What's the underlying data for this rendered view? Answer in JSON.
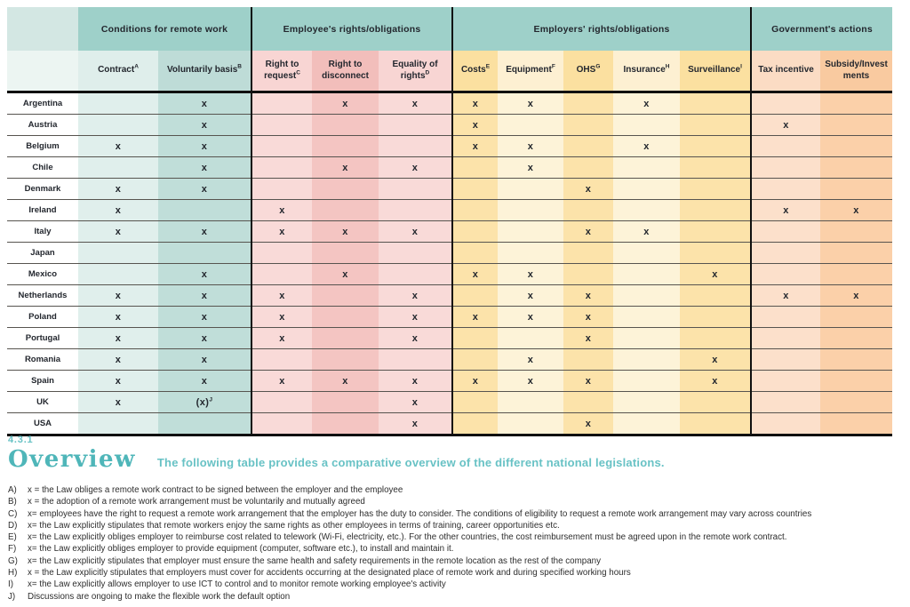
{
  "section": {
    "number": "4.3.1",
    "title": "Overview",
    "subtitle": "The following table provides a comparative overview of the different national legislations."
  },
  "table": {
    "mark": "x",
    "groups": [
      {
        "label": "Conditions for remote work",
        "columns": [
          {
            "label": "Contract",
            "sup": "A"
          },
          {
            "label": "Voluntarily basis",
            "sup": "B"
          }
        ]
      },
      {
        "label": "Employee's rights/obligations",
        "columns": [
          {
            "label": "Right to request",
            "sup": "C"
          },
          {
            "label": "Right to disconnect",
            "sup": ""
          },
          {
            "label": "Equality of rights",
            "sup": "D"
          }
        ]
      },
      {
        "label": "Employers' rights/obligations",
        "columns": [
          {
            "label": "Costs",
            "sup": "E"
          },
          {
            "label": "Equipment",
            "sup": "F"
          },
          {
            "label": "OHS",
            "sup": "G"
          },
          {
            "label": "Insurance",
            "sup": "H"
          },
          {
            "label": "Surveillance",
            "sup": "I"
          }
        ]
      },
      {
        "label": "Government's actions",
        "columns": [
          {
            "label": "Tax incentive",
            "sup": ""
          },
          {
            "label": "Subsidy/Investments",
            "sup": ""
          }
        ]
      }
    ],
    "column_keys": [
      "contract",
      "voluntarily_basis",
      "right_to_request",
      "right_to_disconnect",
      "equality_of_rights",
      "costs",
      "equipment",
      "ohs",
      "insurance",
      "surveillance",
      "tax_incentive",
      "subsidy_investments"
    ],
    "rows": [
      {
        "country": "Argentina",
        "cells": [
          "",
          "x",
          "",
          "x",
          "x",
          "x",
          "x",
          "",
          "x",
          "",
          "",
          ""
        ]
      },
      {
        "country": "Austria",
        "cells": [
          "",
          "x",
          "",
          "",
          "",
          "x",
          "",
          "",
          "",
          "",
          "x",
          ""
        ]
      },
      {
        "country": "Belgium",
        "cells": [
          "x",
          "x",
          "",
          "",
          "",
          "x",
          "x",
          "",
          "x",
          "",
          "",
          ""
        ]
      },
      {
        "country": "Chile",
        "cells": [
          "",
          "x",
          "",
          "x",
          "x",
          "",
          "x",
          "",
          "",
          "",
          "",
          ""
        ]
      },
      {
        "country": "Denmark",
        "cells": [
          "x",
          "x",
          "",
          "",
          "",
          "",
          "",
          "x",
          "",
          "",
          "",
          ""
        ]
      },
      {
        "country": "Ireland",
        "cells": [
          "x",
          "",
          "x",
          "",
          "",
          "",
          "",
          "",
          "",
          "",
          "x",
          "x"
        ]
      },
      {
        "country": "Italy",
        "cells": [
          "x",
          "x",
          "x",
          "x",
          "x",
          "",
          "",
          "x",
          "x",
          "",
          "",
          ""
        ]
      },
      {
        "country": "Japan",
        "cells": [
          "",
          "",
          "",
          "",
          "",
          "",
          "",
          "",
          "",
          "",
          "",
          ""
        ]
      },
      {
        "country": "Mexico",
        "cells": [
          "",
          "x",
          "",
          "x",
          "",
          "x",
          "x",
          "",
          "",
          "x",
          "",
          ""
        ]
      },
      {
        "country": "Netherlands",
        "cells": [
          "x",
          "x",
          "x",
          "",
          "x",
          "",
          "x",
          "x",
          "",
          "",
          "x",
          "x"
        ]
      },
      {
        "country": "Poland",
        "cells": [
          "x",
          "x",
          "x",
          "",
          "x",
          "x",
          "x",
          "x",
          "",
          "",
          "",
          ""
        ]
      },
      {
        "country": "Portugal",
        "cells": [
          "x",
          "x",
          "x",
          "",
          "x",
          "",
          "",
          "x",
          "",
          "",
          "",
          ""
        ]
      },
      {
        "country": "Romania",
        "cells": [
          "x",
          "x",
          "",
          "",
          "",
          "",
          "x",
          "",
          "",
          "x",
          "",
          ""
        ]
      },
      {
        "country": "Spain",
        "cells": [
          "x",
          "x",
          "x",
          "x",
          "x",
          "x",
          "x",
          "x",
          "",
          "x",
          "",
          ""
        ]
      },
      {
        "country": "UK",
        "cells": [
          "x",
          "(x)^J",
          "",
          "",
          "x",
          "",
          "",
          "",
          "",
          "",
          "",
          ""
        ]
      },
      {
        "country": "USA",
        "cells": [
          "",
          "",
          "",
          "",
          "x",
          "",
          "",
          "x",
          "",
          "",
          "",
          ""
        ]
      }
    ]
  },
  "footnotes": [
    {
      "id": "A)",
      "text": "x = the Law obliges a remote work contract to be signed between the employer and the employee"
    },
    {
      "id": "B)",
      "text": "x = the adoption of a remote work arrangement must be voluntarily and mutually agreed"
    },
    {
      "id": "C)",
      "text": "x= employees have the right to request a remote work arrangement that the employer has the duty to consider. The conditions of eligibility to request a remote work arrangement may vary across countries"
    },
    {
      "id": "D)",
      "text": "x= the Law explicitly stipulates that remote workers enjoy the same rights as other employees in terms of training, career opportunities etc."
    },
    {
      "id": "E)",
      "text": "x= the Law explicitly obliges employer to reimburse cost related to telework (Wi-Fi, electricity, etc.). For the other countries, the cost reimbursement must be agreed upon in the remote work contract."
    },
    {
      "id": "F)",
      "text": "x= the Law explicitly obliges employer to provide equipment (computer, software etc.), to install and maintain it."
    },
    {
      "id": "G)",
      "text": "x= the Law explicitly stipulates that employer must ensure the same health and safety requirements in the remote location as the rest of the company"
    },
    {
      "id": "H)",
      "text": "x = the Law explicitly stipulates that employers must cover for accidents occurring at the designated place of remote work and during specified working hours"
    },
    {
      "id": "I)",
      "text": "x= the Law explicitly allows employer to use ICT to control and to monitor remote working employee's activity"
    },
    {
      "id": "J)",
      "text": "Discussions are ongoing to make the flexible work the default option"
    }
  ],
  "colors": {
    "group_header": "#9ed0c9",
    "spacer_top": "#d3e7e3",
    "spacer_sub": "#ecf5f2",
    "header_col_bg": [
      "#dfeeeb",
      "#bedcd7",
      "#f8d5d3",
      "#f2bebb",
      "#f8d5d3",
      "#fbe0a0",
      "#fdf0d2",
      "#fbe0a0",
      "#fdf0d2",
      "#fbe0a0",
      "#fbdcc4",
      "#f9caa0"
    ],
    "body_col_bg": [
      "#e0efec",
      "#c0ded9",
      "#f9dad8",
      "#f4c5c2",
      "#f9dad8",
      "#fce3aa",
      "#fdf3d8",
      "#fce3aa",
      "#fdf3d8",
      "#fce3aa",
      "#fce0cb",
      "#fbd0a9"
    ],
    "accent_teal": "#4fb6b9",
    "accent_teal_light": "#68c2c5",
    "text_dark": "#23272e",
    "thin_line": "#57544f",
    "thick_line": "#101010"
  }
}
